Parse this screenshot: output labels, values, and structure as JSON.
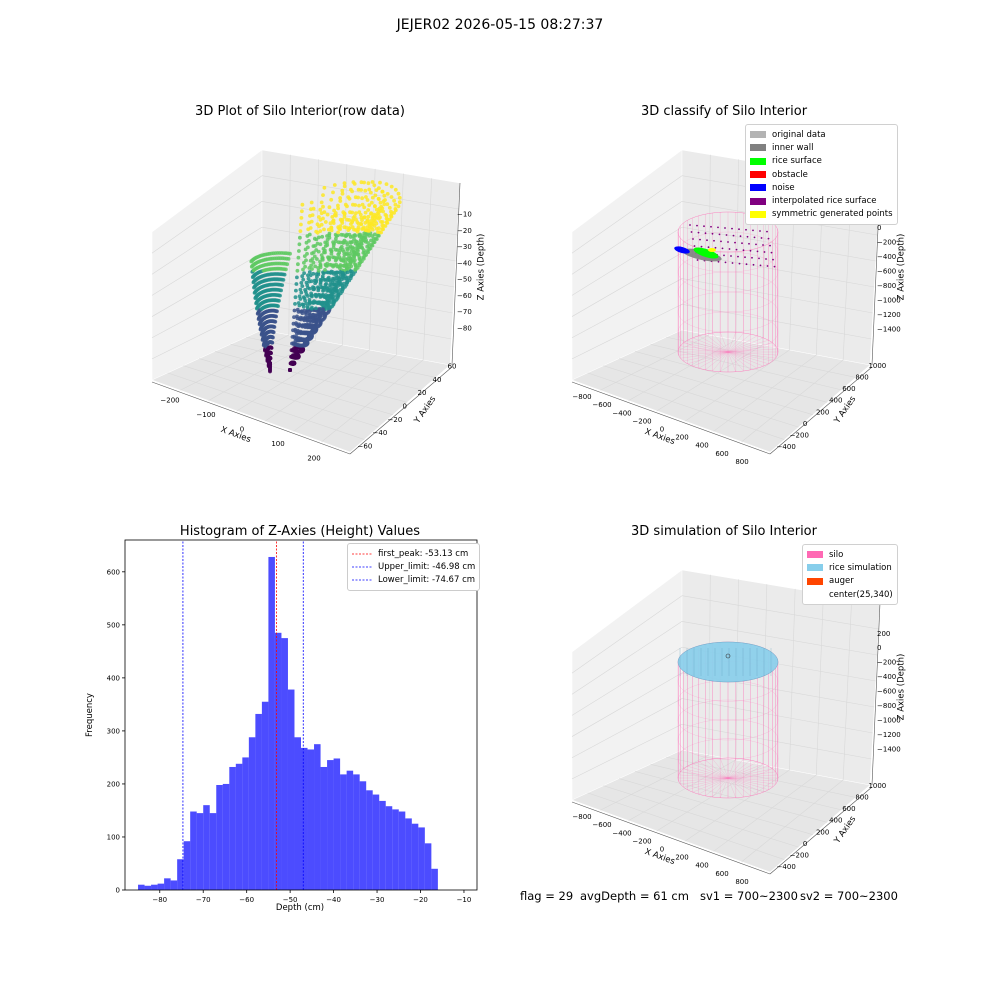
{
  "suptitle": "JEJER02 2026-05-15 08:27:37",
  "footer": {
    "flag": "flag = 29",
    "avg_depth": "avgDepth = 61 cm",
    "sv1": "sv1 = 700~2300",
    "sv2": "sv2 = 700~2300"
  },
  "panels": {
    "raw": {
      "title": "3D Plot of Silo Interior(row data)",
      "x_label": "X Axies",
      "y_label": "Y Axies",
      "z_label": "Z Axies (Depth)",
      "x_ticks": [
        "−200",
        "−100",
        "0",
        "100",
        "200"
      ],
      "y_ticks": [
        "−60",
        "−40",
        "−20",
        "0",
        "20",
        "40",
        "60"
      ],
      "z_ticks": [
        "−10",
        "−20",
        "−30",
        "−40",
        "−50",
        "−60",
        "−70",
        "−80"
      ],
      "colormap": [
        "#440154",
        "#3b528b",
        "#21918c",
        "#5ec962",
        "#fde725"
      ]
    },
    "classify": {
      "title": "3D classify of Silo Interior",
      "x_label": "X Axies",
      "y_label": "Y Axies",
      "z_label": "Z Axies (Depth)",
      "x_ticks": [
        "−800",
        "−600",
        "−400",
        "−200",
        "0",
        "200",
        "400",
        "600",
        "800"
      ],
      "y_ticks": [
        "−400",
        "−200",
        "0",
        "200",
        "400",
        "600",
        "800",
        "1000"
      ],
      "z_ticks": [
        "200",
        "0",
        "−200",
        "−400",
        "−600",
        "−800",
        "−1000",
        "−1200",
        "−1400"
      ],
      "legend": [
        {
          "label": "original data",
          "color": "#b3b3b3"
        },
        {
          "label": "inner wall",
          "color": "#808080"
        },
        {
          "label": "rice surface",
          "color": "#00ff00"
        },
        {
          "label": "obstacle",
          "color": "#ff0000"
        },
        {
          "label": "noise",
          "color": "#0000ff"
        },
        {
          "label": "interpolated rice surface",
          "color": "#800080"
        },
        {
          "label": "symmetric generated points",
          "color": "#ffff00"
        }
      ],
      "silo_color": "#ff69b4"
    },
    "simulation": {
      "title": "3D simulation of Silo Interior",
      "x_label": "X Axies",
      "y_label": "Y Axies",
      "z_label": "Z Axies (Depth)",
      "x_ticks": [
        "−800",
        "−600",
        "−400",
        "−200",
        "0",
        "200",
        "400",
        "600",
        "800"
      ],
      "y_ticks": [
        "−400",
        "−200",
        "0",
        "200",
        "400",
        "600",
        "800",
        "1000"
      ],
      "z_ticks": [
        "200",
        "0",
        "−200",
        "−400",
        "−600",
        "−800",
        "−1000",
        "−1200",
        "−1400"
      ],
      "legend": [
        {
          "label": "silo",
          "color": "#ff69b4"
        },
        {
          "label": "rice simulation",
          "color": "#87ceeb"
        },
        {
          "label": "auger",
          "color": "#ff4500"
        },
        {
          "label": "center(25,340)",
          "color": ""
        }
      ]
    }
  },
  "chart_data": [
    {
      "type": "bar",
      "title": "Histogram of Z-Axies (Height) Values",
      "xlabel": "Depth (cm)",
      "ylabel": "Frequency",
      "xlim": [
        -88,
        -7
      ],
      "ylim": [
        0,
        660
      ],
      "bar_color": "#0000ff",
      "bar_opacity": 0.7,
      "x_ticks": [
        -80,
        -70,
        -60,
        -50,
        -40,
        -30,
        -20,
        -10
      ],
      "y_ticks": [
        0,
        100,
        200,
        300,
        400,
        500,
        600
      ],
      "bins": {
        "start": -85.0,
        "width": 1.5,
        "values": [
          10,
          8,
          10,
          12,
          22,
          18,
          58,
          92,
          148,
          145,
          160,
          145,
          198,
          200,
          232,
          238,
          250,
          288,
          332,
          355,
          628,
          485,
          475,
          378,
          288,
          268,
          265,
          275,
          232,
          245,
          248,
          218,
          225,
          218,
          205,
          188,
          180,
          168,
          158,
          152,
          148,
          135,
          125,
          118,
          88,
          40
        ]
      },
      "vlines": [
        {
          "label": "first_peak: -53.13 cm",
          "x": -53.13,
          "color": "#ff0000"
        },
        {
          "label": "Upper_limit: -46.98 cm",
          "x": -46.98,
          "color": "#0000ff"
        },
        {
          "label": "Lower_limit: -74.67 cm",
          "x": -74.67,
          "color": "#0000ff"
        }
      ],
      "legend_position": "top-right",
      "grid": false
    }
  ]
}
